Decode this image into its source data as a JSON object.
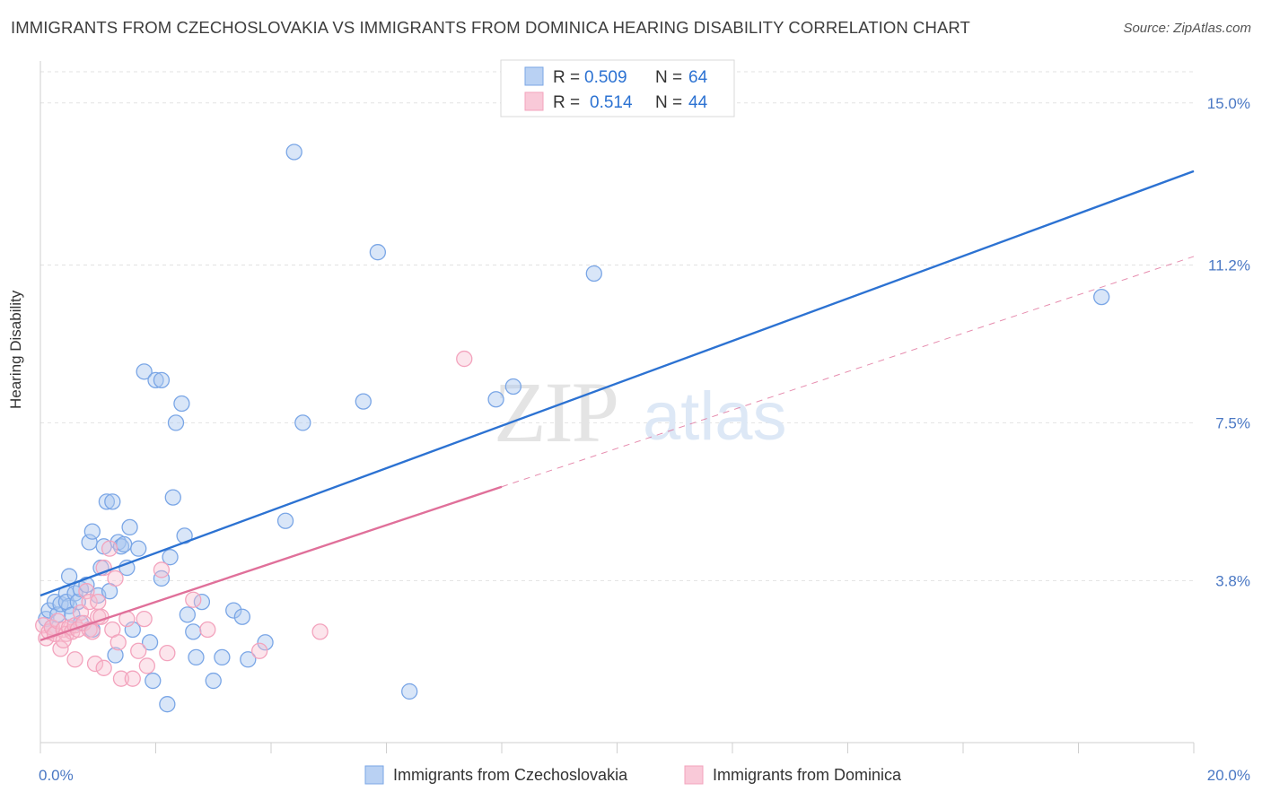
{
  "header": {
    "title": "IMMIGRANTS FROM CZECHOSLOVAKIA VS IMMIGRANTS FROM DOMINICA HEARING DISABILITY CORRELATION CHART",
    "source": "Source: ZipAtlas.com"
  },
  "watermark": {
    "zip": "ZIP",
    "atlas": "atlas"
  },
  "chart_data": {
    "type": "scatter",
    "title": "IMMIGRANTS FROM CZECHOSLOVAKIA VS IMMIGRANTS FROM DOMINICA HEARING DISABILITY CORRELATION CHART",
    "xlabel": "",
    "ylabel": "Hearing Disability",
    "xlim": [
      0,
      20
    ],
    "ylim": [
      0,
      15.9
    ],
    "x_ticks": [
      {
        "value": 0,
        "label": "0.0%"
      },
      {
        "value": 20,
        "label": "20.0%"
      }
    ],
    "y_ticks": [
      {
        "value": 3.8,
        "label": "3.8%"
      },
      {
        "value": 7.5,
        "label": "7.5%"
      },
      {
        "value": 11.2,
        "label": "11.2%"
      },
      {
        "value": 15.0,
        "label": "15.0%"
      }
    ],
    "grid": true,
    "legend_position": "top-center",
    "series": [
      {
        "name": "Immigrants from Czechoslovakia",
        "color": "#7aa6e6",
        "line_color": "#2c72d2",
        "R": "0.509",
        "N": "64",
        "trend": {
          "x0": 0,
          "y0": 3.45,
          "x1": 20,
          "y1": 13.4,
          "solid_to": 20
        },
        "points": [
          [
            0.1,
            2.9
          ],
          [
            0.15,
            3.1
          ],
          [
            0.2,
            2.7
          ],
          [
            0.25,
            3.3
          ],
          [
            0.3,
            3.0
          ],
          [
            0.35,
            3.25
          ],
          [
            0.45,
            3.5
          ],
          [
            0.5,
            3.2
          ],
          [
            0.45,
            3.3
          ],
          [
            0.5,
            3.9
          ],
          [
            0.55,
            3.0
          ],
          [
            0.6,
            3.5
          ],
          [
            0.65,
            3.3
          ],
          [
            0.7,
            3.6
          ],
          [
            0.7,
            2.8
          ],
          [
            0.8,
            3.7
          ],
          [
            0.85,
            4.7
          ],
          [
            0.9,
            4.95
          ],
          [
            0.9,
            2.65
          ],
          [
            1.0,
            3.45
          ],
          [
            1.05,
            4.1
          ],
          [
            1.1,
            4.6
          ],
          [
            1.15,
            5.65
          ],
          [
            1.2,
            3.55
          ],
          [
            1.25,
            5.65
          ],
          [
            1.3,
            2.05
          ],
          [
            1.35,
            4.7
          ],
          [
            1.4,
            4.6
          ],
          [
            1.45,
            4.65
          ],
          [
            1.5,
            4.1
          ],
          [
            1.55,
            5.05
          ],
          [
            1.6,
            2.65
          ],
          [
            1.7,
            4.55
          ],
          [
            1.8,
            8.7
          ],
          [
            1.9,
            2.35
          ],
          [
            1.95,
            1.45
          ],
          [
            2.0,
            8.5
          ],
          [
            2.1,
            8.5
          ],
          [
            2.1,
            3.85
          ],
          [
            2.2,
            0.9
          ],
          [
            2.25,
            4.35
          ],
          [
            2.3,
            5.75
          ],
          [
            2.35,
            7.5
          ],
          [
            2.45,
            7.95
          ],
          [
            2.5,
            4.85
          ],
          [
            2.55,
            3.0
          ],
          [
            2.65,
            2.6
          ],
          [
            2.7,
            2.0
          ],
          [
            2.8,
            3.3
          ],
          [
            3.0,
            1.45
          ],
          [
            3.15,
            2.0
          ],
          [
            3.35,
            3.1
          ],
          [
            3.5,
            2.95
          ],
          [
            3.6,
            1.95
          ],
          [
            3.9,
            2.35
          ],
          [
            4.25,
            5.2
          ],
          [
            4.4,
            13.85
          ],
          [
            4.55,
            7.5
          ],
          [
            5.6,
            8.0
          ],
          [
            5.85,
            11.5
          ],
          [
            6.4,
            1.2
          ],
          [
            7.9,
            8.05
          ],
          [
            8.2,
            8.35
          ],
          [
            9.6,
            11.0
          ],
          [
            18.4,
            10.45
          ]
        ]
      },
      {
        "name": "Immigrants from Dominica",
        "color": "#f3a3bd",
        "line_color": "#e0709a",
        "R": "0.514",
        "N": "44",
        "trend": {
          "x0": 0,
          "y0": 2.4,
          "x1": 20,
          "y1": 11.4,
          "solid_to": 8.0
        },
        "points": [
          [
            0.05,
            2.75
          ],
          [
            0.1,
            2.45
          ],
          [
            0.15,
            2.6
          ],
          [
            0.2,
            2.7
          ],
          [
            0.25,
            2.55
          ],
          [
            0.3,
            2.85
          ],
          [
            0.35,
            2.2
          ],
          [
            0.4,
            2.65
          ],
          [
            0.45,
            2.55
          ],
          [
            0.5,
            2.7
          ],
          [
            0.55,
            2.6
          ],
          [
            0.6,
            2.75
          ],
          [
            0.6,
            1.95
          ],
          [
            0.65,
            2.65
          ],
          [
            0.7,
            3.05
          ],
          [
            0.75,
            2.8
          ],
          [
            0.8,
            3.55
          ],
          [
            0.85,
            2.65
          ],
          [
            0.85,
            3.3
          ],
          [
            0.9,
            2.6
          ],
          [
            0.95,
            1.85
          ],
          [
            1.0,
            3.3
          ],
          [
            1.0,
            2.95
          ],
          [
            1.05,
            2.95
          ],
          [
            1.1,
            1.75
          ],
          [
            1.1,
            4.1
          ],
          [
            1.2,
            4.55
          ],
          [
            1.25,
            2.65
          ],
          [
            1.3,
            3.85
          ],
          [
            1.35,
            2.35
          ],
          [
            1.4,
            1.5
          ],
          [
            1.5,
            2.9
          ],
          [
            1.6,
            1.5
          ],
          [
            1.7,
            2.15
          ],
          [
            1.8,
            2.9
          ],
          [
            1.85,
            1.8
          ],
          [
            2.1,
            4.05
          ],
          [
            2.2,
            2.1
          ],
          [
            2.65,
            3.35
          ],
          [
            2.9,
            2.65
          ],
          [
            3.8,
            2.15
          ],
          [
            4.85,
            2.6
          ],
          [
            7.35,
            9.0
          ],
          [
            0.4,
            2.4
          ]
        ]
      }
    ]
  }
}
